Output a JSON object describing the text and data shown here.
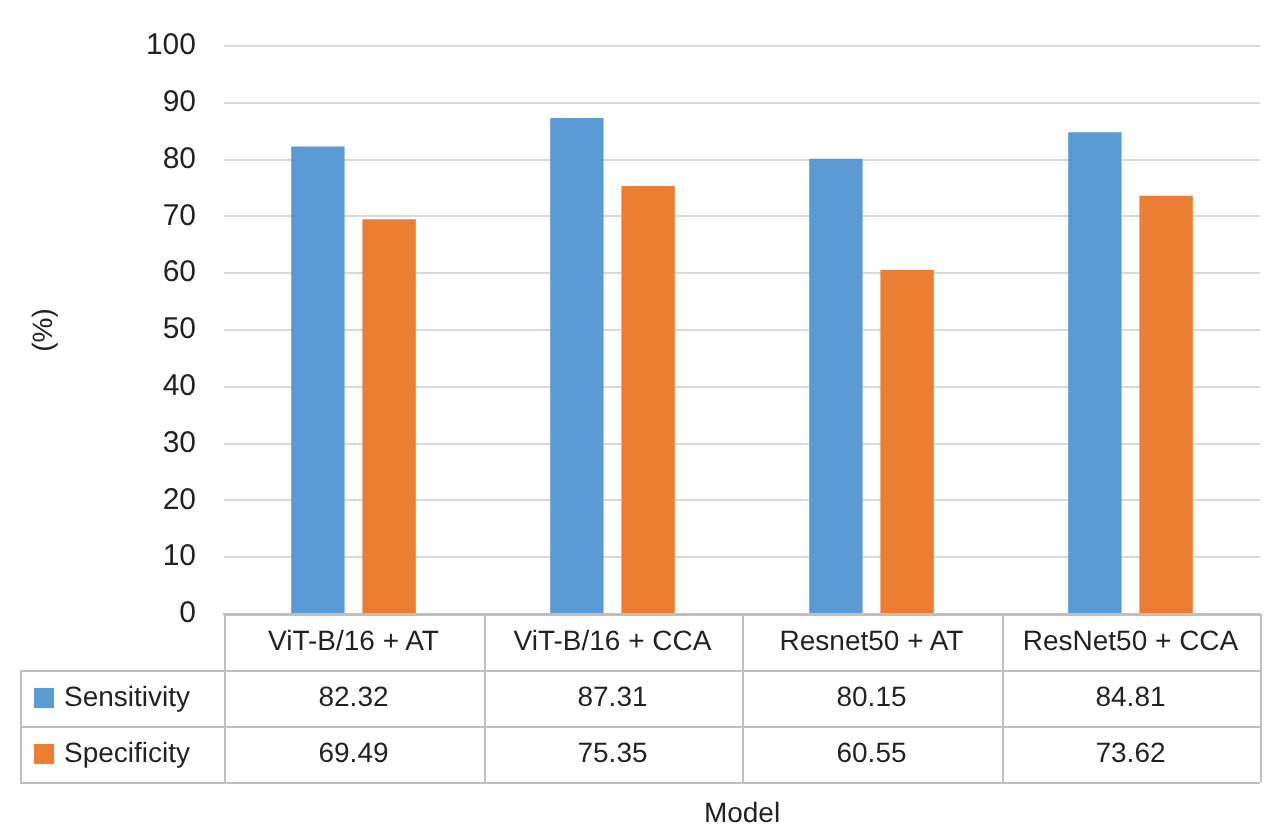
{
  "chart_data": {
    "type": "bar",
    "xlabel": "Model",
    "ylabel": "(%)",
    "categories": [
      "ViT-B/16 + AT",
      "ViT-B/16 + CCA",
      "Resnet50 + AT",
      "ResNet50 + CCA"
    ],
    "series": [
      {
        "name": "Sensitivity",
        "color": "#5b9bd5",
        "values": [
          82.32,
          87.31,
          80.15,
          84.81
        ]
      },
      {
        "name": "Specificity",
        "color": "#ed7d31",
        "values": [
          69.49,
          75.35,
          60.55,
          73.62
        ]
      }
    ],
    "ylim": [
      0,
      100
    ],
    "yticks": [
      0,
      10,
      20,
      30,
      40,
      50,
      60,
      70,
      80,
      90,
      100
    ],
    "grid": "y",
    "legend": "bottom",
    "data_labels": true
  }
}
